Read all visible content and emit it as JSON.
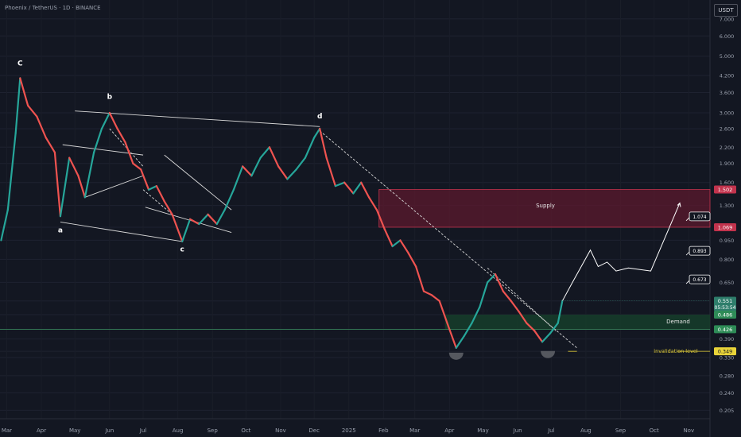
{
  "header": {
    "symbol_line": "Phoenix / TetherUS · 1D · BINANCE",
    "currency_button": "USDT"
  },
  "colors": {
    "background": "#131722",
    "up": "#26a69a",
    "down": "#ef5350",
    "supply_fill": "#5c1a2e",
    "demand_fill": "#163d2a",
    "invalidation": "#e8d339",
    "price_label": "#2e7d6b"
  },
  "chart_data": {
    "type": "candlestick",
    "scale": "log",
    "title": "",
    "ylim": [
      0.19,
      8.3
    ],
    "y_ticks": [
      7.0,
      6.0,
      5.0,
      4.2,
      3.6,
      3.0,
      2.6,
      2.2,
      1.9,
      1.6,
      1.3,
      1.069,
      0.95,
      0.8,
      0.65,
      0.55,
      0.486,
      0.426,
      0.39,
      0.349,
      0.33,
      0.28,
      0.24,
      0.205
    ],
    "y_tick_labels": [
      "7.000",
      "6.000",
      "5.000",
      "4.200",
      "3.600",
      "3.000",
      "2.600",
      "2.200",
      "1.900",
      "1.600",
      "1.300",
      "",
      "0.950",
      "0.800",
      "0.650",
      "",
      "",
      "",
      "0.390",
      "",
      "0.330",
      "0.280",
      "0.240",
      "0.205"
    ],
    "x_months": [
      "Mar",
      "Apr",
      "May",
      "Jun",
      "Jul",
      "Aug",
      "Sep",
      "Oct",
      "Nov",
      "Dec",
      "2025",
      "Feb",
      "Mar",
      "Apr",
      "May",
      "Jun",
      "Jul",
      "Aug",
      "Sep",
      "Oct",
      "Nov"
    ],
    "path_points": [
      [
        "2024-02-25",
        0.95
      ],
      [
        "2024-03-02",
        1.25
      ],
      [
        "2024-03-09",
        2.5
      ],
      [
        "2024-03-13",
        4.1
      ],
      [
        "2024-03-20",
        3.2
      ],
      [
        "2024-03-28",
        2.9
      ],
      [
        "2024-04-05",
        2.4
      ],
      [
        "2024-04-13",
        2.1
      ],
      [
        "2024-04-18",
        1.18
      ],
      [
        "2024-04-26",
        2.0
      ],
      [
        "2024-05-04",
        1.7
      ],
      [
        "2024-05-10",
        1.4
      ],
      [
        "2024-05-18",
        2.1
      ],
      [
        "2024-05-25",
        2.6
      ],
      [
        "2024-06-01",
        3.0
      ],
      [
        "2024-06-08",
        2.6
      ],
      [
        "2024-06-15",
        2.3
      ],
      [
        "2024-06-22",
        1.9
      ],
      [
        "2024-06-29",
        1.8
      ],
      [
        "2024-07-06",
        1.5
      ],
      [
        "2024-07-13",
        1.55
      ],
      [
        "2024-07-20",
        1.35
      ],
      [
        "2024-07-27",
        1.2
      ],
      [
        "2024-08-05",
        0.94
      ],
      [
        "2024-08-12",
        1.15
      ],
      [
        "2024-08-20",
        1.1
      ],
      [
        "2024-08-28",
        1.2
      ],
      [
        "2024-09-05",
        1.1
      ],
      [
        "2024-09-12",
        1.25
      ],
      [
        "2024-09-20",
        1.5
      ],
      [
        "2024-09-28",
        1.85
      ],
      [
        "2024-10-06",
        1.7
      ],
      [
        "2024-10-14",
        2.0
      ],
      [
        "2024-10-22",
        2.2
      ],
      [
        "2024-10-30",
        1.85
      ],
      [
        "2024-11-07",
        1.65
      ],
      [
        "2024-11-15",
        1.8
      ],
      [
        "2024-11-23",
        2.0
      ],
      [
        "2024-12-01",
        2.4
      ],
      [
        "2024-12-06",
        2.6
      ],
      [
        "2024-12-12",
        2.0
      ],
      [
        "2024-12-20",
        1.55
      ],
      [
        "2024-12-28",
        1.6
      ],
      [
        "2025-01-05",
        1.45
      ],
      [
        "2025-01-12",
        1.6
      ],
      [
        "2025-01-19",
        1.4
      ],
      [
        "2025-01-26",
        1.25
      ],
      [
        "2025-02-02",
        1.05
      ],
      [
        "2025-02-09",
        0.9
      ],
      [
        "2025-02-16",
        0.95
      ],
      [
        "2025-02-23",
        0.85
      ],
      [
        "2025-03-02",
        0.75
      ],
      [
        "2025-03-09",
        0.6
      ],
      [
        "2025-03-16",
        0.58
      ],
      [
        "2025-03-23",
        0.55
      ],
      [
        "2025-03-30",
        0.45
      ],
      [
        "2025-04-07",
        0.36
      ],
      [
        "2025-04-14",
        0.4
      ],
      [
        "2025-04-21",
        0.45
      ],
      [
        "2025-04-28",
        0.52
      ],
      [
        "2025-05-05",
        0.65
      ],
      [
        "2025-05-12",
        0.7
      ],
      [
        "2025-05-19",
        0.6
      ],
      [
        "2025-05-26",
        0.55
      ],
      [
        "2025-06-02",
        0.5
      ],
      [
        "2025-06-09",
        0.45
      ],
      [
        "2025-06-16",
        0.42
      ],
      [
        "2025-06-23",
        0.38
      ],
      [
        "2025-06-30",
        0.41
      ],
      [
        "2025-07-07",
        0.45
      ],
      [
        "2025-07-11",
        0.551
      ]
    ],
    "annotations": {
      "wave_labels": [
        {
          "label": "C",
          "date": "2024-03-13",
          "price": 4.6
        },
        {
          "label": "a",
          "date": "2024-04-18",
          "price": 1.02
        },
        {
          "label": "b",
          "date": "2024-06-01",
          "price": 3.4
        },
        {
          "label": "c",
          "date": "2024-08-05",
          "price": 0.86
        },
        {
          "label": "d",
          "date": "2024-12-06",
          "price": 2.85
        }
      ],
      "supply_zone": {
        "label": "Supply",
        "from": "2025-01-28",
        "low": 1.069,
        "high": 1.502
      },
      "demand_zone": {
        "label": "Demand",
        "from": "2025-03-28",
        "low": 0.426,
        "high": 0.486
      },
      "invalidation": {
        "label": "invalidation level",
        "price": 0.349
      },
      "projection": [
        [
          "2025-07-11",
          0.55
        ],
        [
          "2025-07-20",
          0.65
        ],
        [
          "2025-08-05",
          0.87
        ],
        [
          "2025-08-12",
          0.75
        ],
        [
          "2025-08-20",
          0.78
        ],
        [
          "2025-08-28",
          0.72
        ],
        [
          "2025-09-08",
          0.74
        ],
        [
          "2025-09-28",
          0.72
        ],
        [
          "2025-10-14",
          1.05
        ],
        [
          "2025-10-24",
          1.33
        ]
      ],
      "targets": [
        {
          "label": "1.074",
          "date": "2025-10-24",
          "price": 1.2
        },
        {
          "label": "0.893",
          "date": "2025-10-24",
          "price": 0.88
        },
        {
          "label": "0.673",
          "date": "2025-10-24",
          "price": 0.68
        }
      ]
    },
    "price_labels": [
      {
        "text": "1.502",
        "price": 1.502,
        "kind": "supply"
      },
      {
        "text": "1.069",
        "price": 1.069,
        "kind": "supply"
      },
      {
        "text": "0.551",
        "price": 0.551,
        "kind": "last",
        "sub": "05:53:54"
      },
      {
        "text": "0.486",
        "price": 0.486,
        "kind": "demand"
      },
      {
        "text": "0.426",
        "price": 0.426,
        "kind": "demand"
      },
      {
        "text": "0.349",
        "price": 0.349,
        "kind": "invalidation"
      }
    ]
  }
}
